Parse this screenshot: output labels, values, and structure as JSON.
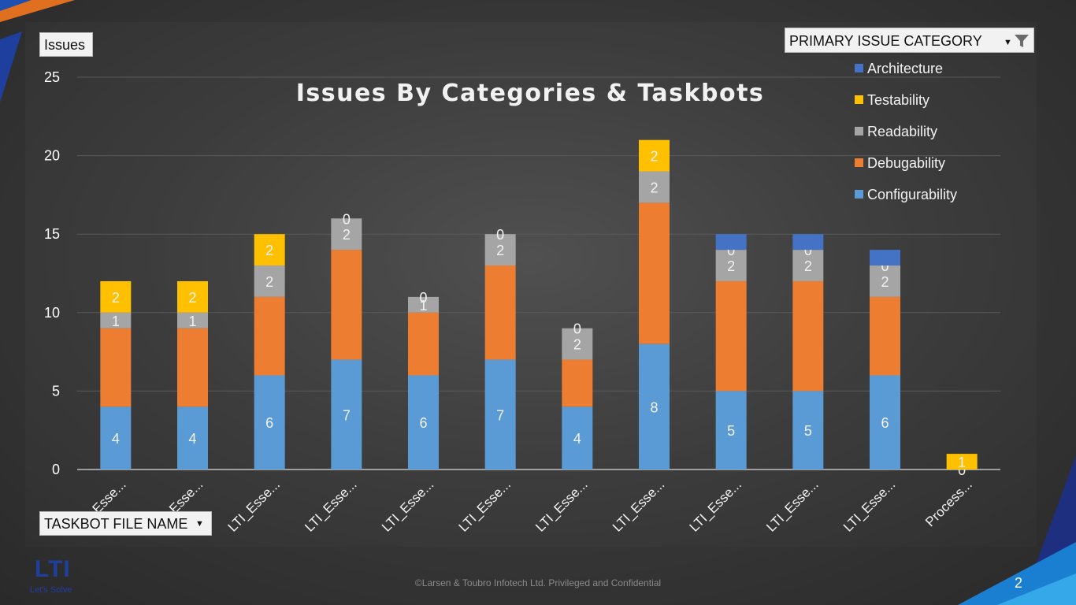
{
  "buttons": {
    "issues_label": "Issues",
    "category_filter_label": "PRIMARY ISSUE CATEGORY",
    "taskbot_filter_label": "TASKBOT FILE NAME"
  },
  "footer": {
    "copyright": "©Larsen & Toubro Infotech Ltd. Privileged and Confidential",
    "page_number": "2"
  },
  "logo": {
    "text": "LTI",
    "tagline": "Let's Solve"
  },
  "chart_data": {
    "type": "stacked-bar",
    "title": "Issues By Categories & Taskbots",
    "ylim": [
      0,
      25
    ],
    "y_ticks": [
      0,
      5,
      10,
      15,
      20,
      25
    ],
    "grid": true,
    "legend_position": "top-right",
    "categories": [
      "Esse...",
      "Esse...",
      "LTI_Esse...",
      "LTI_Esse...",
      "LTI_Esse...",
      "LTI_Esse...",
      "LTI_Esse...",
      "LTI_Esse...",
      "LTI_Esse...",
      "LTI_Esse...",
      "LTI_Esse...",
      "Process..."
    ],
    "series": [
      {
        "name": "Configurability",
        "color": "#5b9bd5",
        "values": [
          4,
          4,
          6,
          7,
          6,
          7,
          4,
          8,
          5,
          5,
          6,
          0
        ],
        "labels": [
          "4",
          "4",
          "6",
          "7",
          "6",
          "7",
          "4",
          "8",
          "5",
          "5",
          "6",
          "0"
        ]
      },
      {
        "name": "Debugability",
        "color": "#ed7d31",
        "values": [
          5,
          5,
          5,
          7,
          4,
          6,
          3,
          9,
          7,
          7,
          5,
          0
        ],
        "labels": [
          "",
          "",
          "",
          "",
          "",
          "",
          "",
          "",
          "",
          "",
          "",
          ""
        ]
      },
      {
        "name": "Readability",
        "color": "#a5a5a5",
        "values": [
          1,
          1,
          2,
          2,
          1,
          2,
          2,
          2,
          2,
          2,
          2,
          0
        ],
        "labels": [
          "1",
          "1",
          "2",
          "2",
          "1",
          "2",
          "2",
          "2",
          "2",
          "2",
          "2",
          ""
        ]
      },
      {
        "name": "Testability",
        "color": "#ffc000",
        "values": [
          2,
          2,
          2,
          0,
          0,
          0,
          0,
          2,
          0,
          0,
          0,
          1
        ],
        "labels": [
          "2",
          "2",
          "2",
          "0",
          "0",
          "0",
          "0",
          "2",
          "0",
          "0",
          "0",
          "1"
        ]
      },
      {
        "name": "Architecture",
        "color": "#4472c4",
        "values": [
          0,
          0,
          0,
          0,
          0,
          0,
          0,
          0,
          1,
          1,
          1,
          0
        ],
        "labels": [
          "",
          "",
          "",
          "",
          "",
          "",
          "",
          "",
          "",
          "",
          "",
          ""
        ]
      }
    ]
  }
}
